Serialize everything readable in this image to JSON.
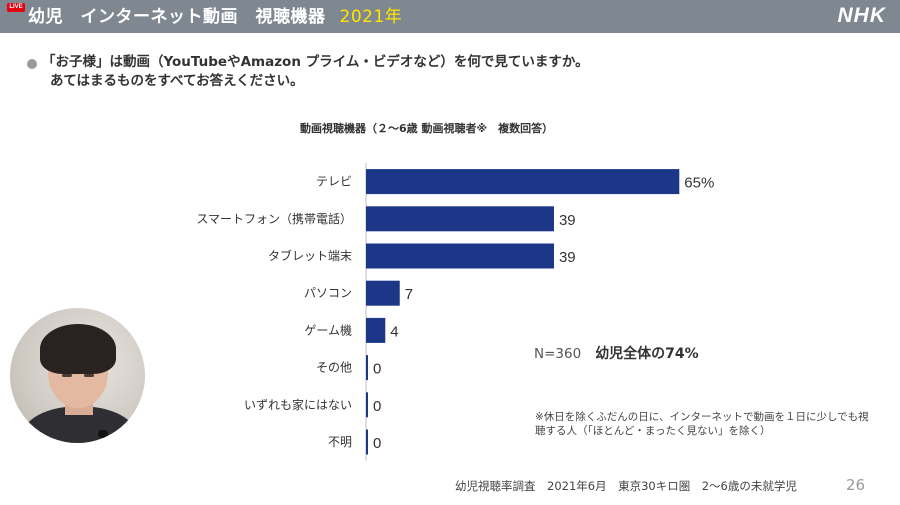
{
  "header": {
    "live_badge": "LIVE",
    "title": "幼児　インターネット動画　視聴機器",
    "year": "2021年",
    "logo": "NHK"
  },
  "question": {
    "line1": "「お子様」は動画（YouTubeやAmazon プライム・ビデオなど）を何で見ていますか。",
    "line2": "あてはまるものをすべてお答えください。"
  },
  "chart_data": {
    "type": "bar",
    "orientation": "horizontal",
    "title": "動画視聴機器（２～6歳 動画視聴者※　複数回答）",
    "categories": [
      "テレビ",
      "スマートフォン（携帯電話）",
      "タブレット端末",
      "パソコン",
      "ゲーム機",
      "その他",
      "いずれも家にはない",
      "不明"
    ],
    "values": [
      65,
      39,
      39,
      7,
      4,
      0,
      0,
      0
    ],
    "value_labels": [
      "65%",
      "39",
      "39",
      "7",
      "4",
      "0",
      "0",
      "0"
    ],
    "grid": false,
    "legend": "none",
    "bar_color": "#1c3787"
  },
  "notes": {
    "n": "N=360",
    "total": "幼児全体の74%",
    "footnote": "※休日を除くふだんの日に、インターネットで動画を１日に少しでも視聴する人（「ほとんど・まったく見ない」を除く）",
    "source": "幼児視聴率調査　2021年6月　東京30キロ圏　2～6歳の未就学児",
    "page": "26"
  }
}
